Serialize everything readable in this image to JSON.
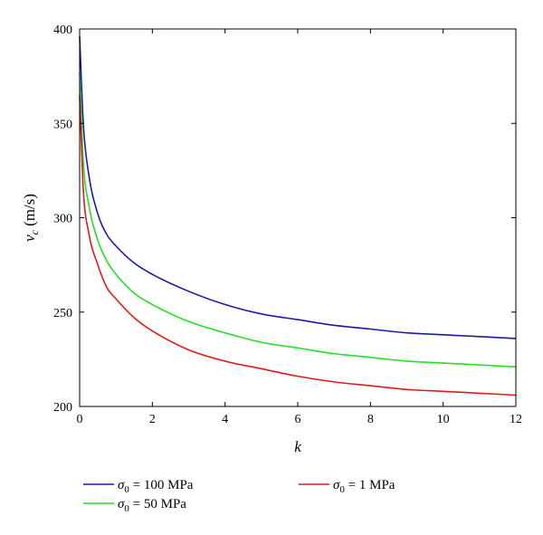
{
  "chart_data": {
    "type": "line",
    "xlabel": "k",
    "ylabel_symbol": "v",
    "ylabel_subscript": "c",
    "ylabel_unit": " (m/s)",
    "xlim": [
      0,
      12
    ],
    "ylim": [
      200,
      400
    ],
    "xticks": [
      0,
      2,
      4,
      6,
      8,
      10,
      12
    ],
    "yticks": [
      200,
      250,
      300,
      350,
      400
    ],
    "xtick_labels": [
      "0",
      "2",
      "4",
      "6",
      "8",
      "10",
      "12"
    ],
    "ytick_labels": [
      "200",
      "250",
      "300",
      "350",
      "400"
    ],
    "grid": false,
    "legend_position": "bottom",
    "series": [
      {
        "name": "σ0 = 100 MPa",
        "legend_symbol": "σ",
        "legend_subscript": "0",
        "legend_value": " = 100 MPa",
        "color": "#1a1aa6",
        "x": [
          0,
          0.1,
          0.25,
          0.5,
          0.75,
          1,
          1.5,
          2,
          3,
          4,
          5,
          6,
          7,
          8,
          9,
          10,
          11,
          12
        ],
        "y": [
          396,
          350,
          323,
          302,
          291,
          285,
          276,
          270,
          261,
          254,
          249,
          246,
          243,
          241,
          239,
          238,
          237,
          236
        ]
      },
      {
        "name": "σ0 = 50 MPa",
        "legend_symbol": "σ",
        "legend_subscript": "0",
        "legend_value": " = 50 MPa",
        "color": "#22e022",
        "x": [
          0,
          0.1,
          0.25,
          0.5,
          0.75,
          1,
          1.5,
          2,
          3,
          4,
          5,
          6,
          7,
          8,
          9,
          10,
          11,
          12
        ],
        "y": [
          377,
          330,
          307,
          288,
          277,
          270,
          260,
          254,
          245,
          239,
          234,
          231,
          228,
          226,
          224,
          223,
          222,
          221
        ]
      },
      {
        "name": "σ0 = 1 MPa",
        "legend_symbol": "σ",
        "legend_subscript": "0",
        "legend_value": " = 1 MPa",
        "color": "#e01a1a",
        "x": [
          0,
          0.1,
          0.25,
          0.5,
          0.75,
          1,
          1.5,
          2,
          3,
          4,
          5,
          6,
          7,
          8,
          9,
          10,
          11,
          12
        ],
        "y": [
          365,
          315,
          292,
          275,
          263,
          257,
          247,
          240,
          230,
          224,
          220,
          216,
          213,
          211,
          209,
          208,
          207,
          206
        ]
      }
    ]
  }
}
